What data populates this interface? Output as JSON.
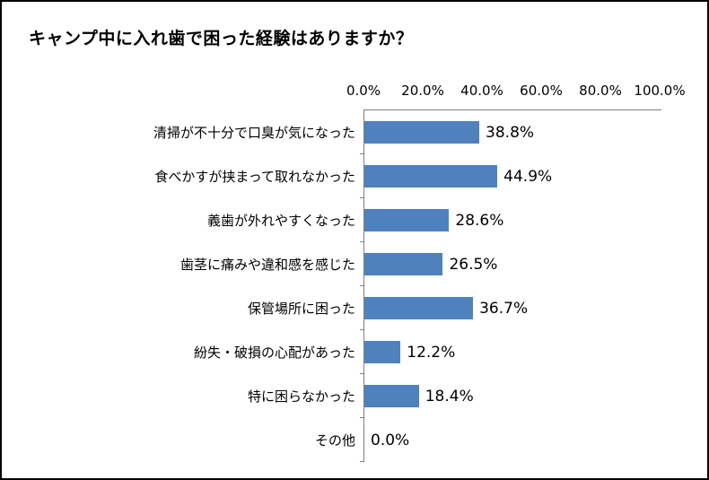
{
  "chart_data": {
    "type": "bar",
    "orientation": "horizontal",
    "title": "キャンプ中に入れ歯で困った経験はありますか？",
    "categories": [
      "清掃が不十分で口臭が気になった",
      "食べかすが挟まって取れなかった",
      "義歯が外れやすくなった",
      "歯茎に痛みや違和感を感じた",
      "保管場所に困った",
      "紛失・破損の心配があった",
      "特に困らなかった",
      "その他"
    ],
    "values": [
      38.8,
      44.9,
      28.6,
      26.5,
      36.7,
      12.2,
      18.4,
      0.0
    ],
    "value_labels": [
      "38.8%",
      "44.9%",
      "28.6%",
      "26.5%",
      "36.7%",
      "12.2%",
      "18.4%",
      "0.0%"
    ],
    "x_ticks": [
      "0.0%",
      "20.0%",
      "40.0%",
      "60.0%",
      "80.0%",
      "100.0%"
    ],
    "xlim": [
      0,
      100
    ],
    "xlabel": "",
    "ylabel": "",
    "legend": "none",
    "grid": "off",
    "bar_color": "#4F81BD",
    "axis_color": "#7f7f7f"
  }
}
